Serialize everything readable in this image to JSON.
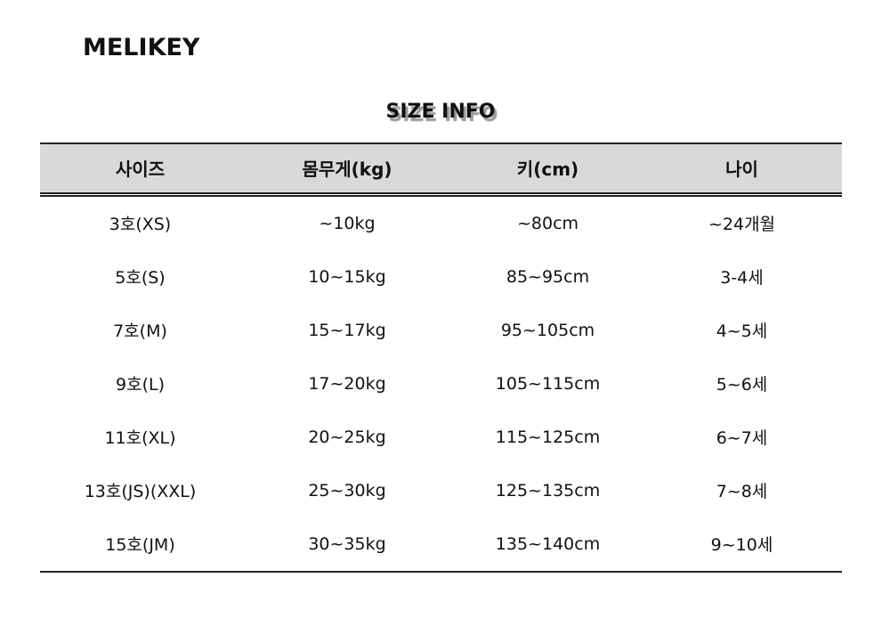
{
  "brand": "MELIKEY",
  "title": "SIZE INFO",
  "table": {
    "headers": [
      "사이즈",
      "몸무게(kg)",
      "키(cm)",
      "나이"
    ],
    "rows": [
      [
        "3호(XS)",
        "~10kg",
        "~80cm",
        "~24개월"
      ],
      [
        "5호(S)",
        "10~15kg",
        "85~95cm",
        "3-4세"
      ],
      [
        "7호(M)",
        "15~17kg",
        "95~105cm",
        "4~5세"
      ],
      [
        "9호(L)",
        "17~20kg",
        "105~115cm",
        "5~6세"
      ],
      [
        "11호(XL)",
        "20~25kg",
        "115~125cm",
        "6~7세"
      ],
      [
        "13호(JS)(XXL)",
        "25~30kg",
        "125~135cm",
        "7~8세"
      ],
      [
        "15호(JM)",
        "30~35kg",
        "135~140cm",
        "9~10세"
      ]
    ]
  }
}
